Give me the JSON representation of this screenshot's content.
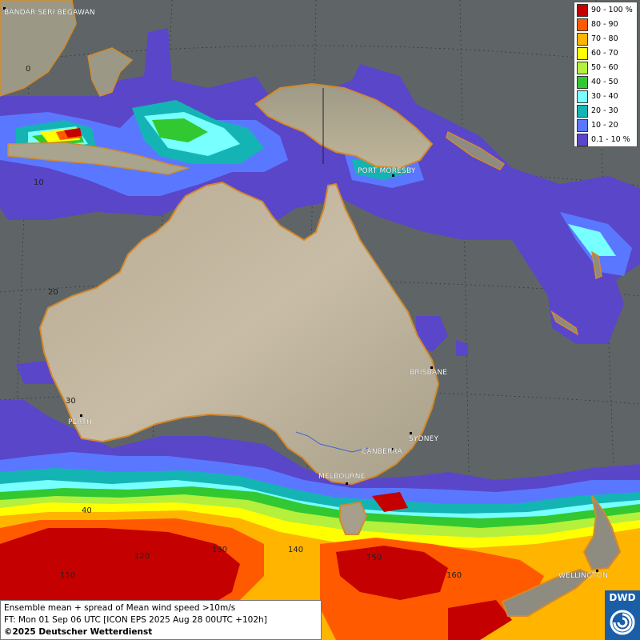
{
  "map": {
    "cities": [
      "BANDAR SERI BEGAWAN",
      "PORT MORESBY",
      "BRISBANE",
      "PERTH",
      "SYDNEY",
      "CANBERRA",
      "MELBOURNE",
      "WELLINGTON"
    ],
    "grid_labels": {
      "lat_0": "0",
      "lat_10": "10",
      "lat_20": "20",
      "lat_30": "30",
      "lat_40": "40",
      "lon_140": "140",
      "lon_130": "130",
      "lon_120": "120",
      "lon_150": "150",
      "lon_160": "160",
      "lon_110": "110"
    }
  },
  "legend": {
    "items": [
      {
        "label": "90 - 100 %",
        "color": "#c40000"
      },
      {
        "label": "80 - 90",
        "color": "#ff5a00"
      },
      {
        "label": "70 - 80",
        "color": "#ffb400"
      },
      {
        "label": "60 - 70",
        "color": "#ffff00"
      },
      {
        "label": "50 - 60",
        "color": "#b4f03c"
      },
      {
        "label": "40 - 50",
        "color": "#32c832"
      },
      {
        "label": "30 - 40",
        "color": "#78ffff"
      },
      {
        "label": "20 - 30",
        "color": "#14b4b4"
      },
      {
        "label": "10 - 20",
        "color": "#5a78ff"
      },
      {
        "label": "0.1 - 10 %",
        "color": "#5a46c8"
      }
    ]
  },
  "info": {
    "line1": "Ensemble mean + spread of Mean wind speed >10m/s",
    "line2": "FT: Mon 01 Sep 06 UTC [ICON EPS 2025 Aug 28 00UTC +102h]",
    "line3": "©2025 Deutscher Wetterdienst"
  },
  "logo": {
    "text": "DWD"
  }
}
